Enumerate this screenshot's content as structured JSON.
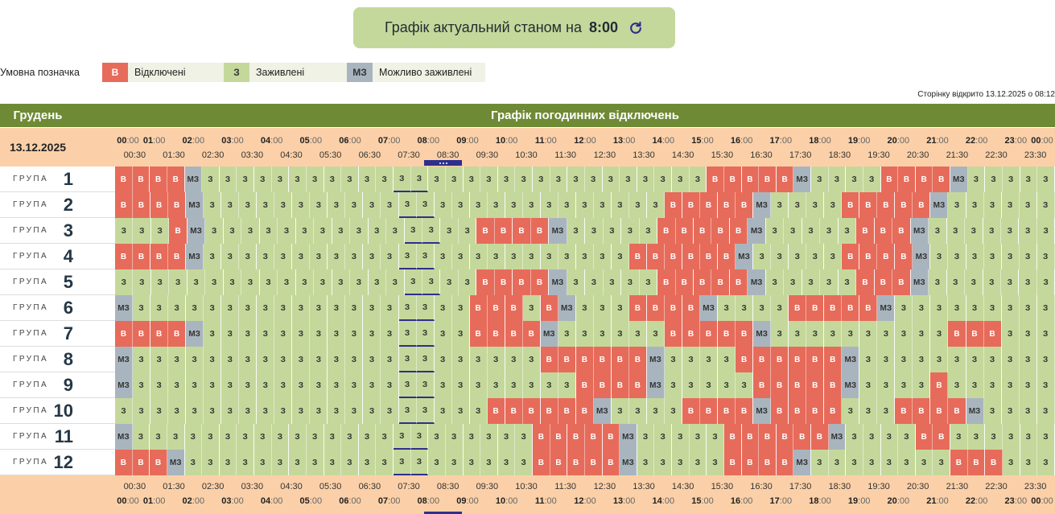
{
  "banner": {
    "text": "Графік актуальний станом на",
    "time": "8:00",
    "refresh_icon": "refresh-icon"
  },
  "legend": {
    "title": "Умовна позначка",
    "items": [
      {
        "code": "В",
        "label": "Відключені",
        "color": "#e76b5a"
      },
      {
        "code": "З",
        "label": "Заживлені",
        "color": "#c5d89b"
      },
      {
        "code": "МЗ",
        "label": "Можливо заживлені",
        "color": "#a9b5be"
      }
    ]
  },
  "opened_note": "Сторінку відкрито 13.12.2025 о 08:12",
  "schedule": {
    "month": "Грудень",
    "title": "Графік погодинних відключень",
    "date": "13.12.2025",
    "hours": [
      "00",
      "01",
      "02",
      "03",
      "04",
      "05",
      "06",
      "07",
      "08",
      "09",
      "10",
      "11",
      "12",
      "13",
      "14",
      "15",
      "16",
      "17",
      "18",
      "19",
      "20",
      "21",
      "22",
      "23",
      "00"
    ],
    "minutes_suffix": ":00",
    "halves": [
      "00:30",
      "01:30",
      "02:30",
      "03:30",
      "04:30",
      "05:30",
      "06:30",
      "07:30",
      "08:30",
      "09:30",
      "10:30",
      "11:30",
      "12:30",
      "13:30",
      "14:30",
      "15:30",
      "16:30",
      "17:30",
      "18:30",
      "19:30",
      "20:30",
      "21:30",
      "22:30",
      "23:30"
    ],
    "current_slot": 16,
    "group_word": "ГРУПА",
    "groups": [
      {
        "num": "1",
        "slots": "ВВВВMЗЗЗЗЗЗЗЗЗЗЗЗЗЗЗЗЗЗЗЗЗЗЗЗЗЗЗЗЗВВВВВMЗЗЗЗВВВВMЗЗЗЗЗ"
      },
      {
        "num": "2",
        "slots": "ВВВВMЗЗЗЗЗЗЗЗЗЗЗЗЗЗЗЗЗЗЗЗЗЗЗЗЗЗВВВВВMЗЗЗЗВВВВВMЗЗЗЗЗЗ"
      },
      {
        "num": "3",
        "slots": "ЗЗЗВMЗЗЗЗЗЗЗЗЗЗЗЗЗЗЗВВВВMЗЗЗЗЗВВВВВMЗЗЗЗЗВВВMЗЗЗЗЗЗЗ"
      },
      {
        "num": "4",
        "slots": "ВВВВMЗЗЗЗЗЗЗЗЗЗЗЗЗЗЗЗЗЗЗЗЗЗЗЗВВВВВВMЗЗЗЗЗВВВВMЗЗЗЗЗЗЗ"
      },
      {
        "num": "5",
        "slots": "ЗЗЗЗЗЗЗЗЗЗЗЗЗЗЗЗЗЗЗЗВВВВMЗЗЗЗЗВВВВВMЗЗЗЗЗВВВMЗЗЗЗЗЗЗ"
      },
      {
        "num": "6",
        "slots": "MЗЗЗЗЗЗЗЗЗЗЗЗЗЗЗЗЗЗЗВВВЗВMЗЗЗВВВВMЗЗЗЗВВВВВMЗЗЗЗЗЗЗЗЗ"
      },
      {
        "num": "7",
        "slots": "ВВВВMЗЗЗЗЗЗЗЗЗЗЗЗЗЗЗВВВВMЗЗЗЗЗЗВВВВВMЗЗЗЗЗЗЗЗЗЗВВВЗЗЗ"
      },
      {
        "num": "8",
        "slots": "MЗЗЗЗЗЗЗЗЗЗЗЗЗЗЗЗЗЗЗЗЗЗЗВВВВВВMЗЗЗЗВВВВВВMЗЗЗЗЗЗЗЗЗЗЗ"
      },
      {
        "num": "9",
        "slots": "MЗЗЗЗЗЗЗЗЗЗЗЗЗЗЗЗЗЗЗЗЗЗЗЗЗВВВВMЗЗЗЗЗВВВВВMЗЗЗЗВЗЗЗЗЗЗ"
      },
      {
        "num": "10",
        "slots": "ЗЗЗЗЗЗЗЗЗЗЗЗЗЗЗЗЗЗЗЗЗВВВВВВMЗЗЗЗВВВВMВВВВЗЗЗВВВВMЗЗЗЗ"
      },
      {
        "num": "11",
        "slots": "MЗЗЗЗЗЗЗЗЗЗЗЗЗЗЗЗЗЗЗЗЗЗЗВВВВВMЗЗЗЗЗВВВВВВMЗЗЗЗВВЗЗЗЗЗЗ"
      },
      {
        "num": "12",
        "slots": "ВВВMЗЗЗЗЗЗЗЗЗЗЗЗЗЗЗЗЗЗЗЗВВВВВMЗЗЗЗЗВВВВMЗЗЗЗЗЗЗЗВВВЗЗЗ"
      }
    ]
  }
}
